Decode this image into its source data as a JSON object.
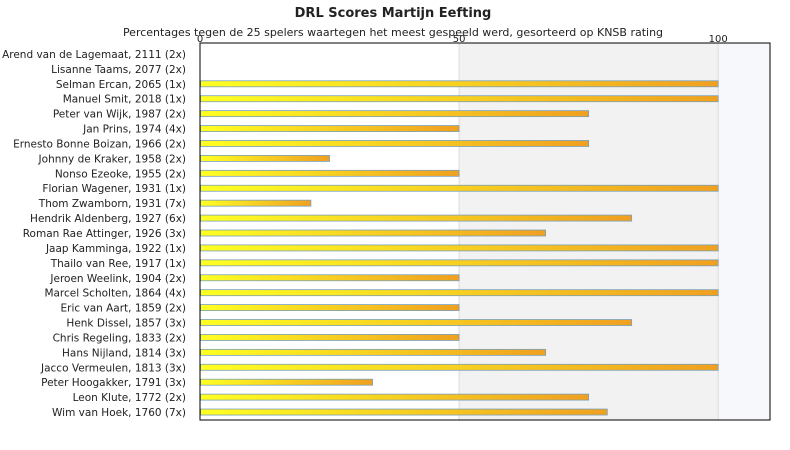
{
  "chart_data": {
    "type": "bar",
    "orientation": "horizontal",
    "title": "DRL Scores Martijn Eefting",
    "subtitle": "Percentages tegen de 25 spelers waartegen het meest gespeeld werd, gesorteerd op KNSB rating",
    "xlabel": "",
    "ylabel": "",
    "xlim": [
      0,
      110
    ],
    "xticks": [
      "0",
      "50",
      "100"
    ],
    "grid": "vertical",
    "legend": "none",
    "colors": {
      "bar_start": "#ffff22",
      "bar_end": "#f0a020",
      "bar_stroke": "#7aa0b8",
      "band_shade": "#f2f2f2",
      "band_light": "#f7f8fb",
      "grid": "#dcdcdc",
      "axis": "#000000"
    },
    "categories": [
      "Arend van de Lagemaat, 2111 (2x)",
      "Lisanne Taams, 2077 (2x)",
      "Selman Ercan, 2065 (1x)",
      "Manuel Smit, 2018 (1x)",
      "Peter van Wijk, 1987 (2x)",
      "Jan Prins, 1974 (4x)",
      "Ernesto Bonne Boizan, 1966 (2x)",
      "Johnny de Kraker, 1958 (2x)",
      "Nonso Ezeoke, 1955 (2x)",
      "Florian Wagener, 1931 (1x)",
      "Thom Zwamborn, 1931 (7x)",
      "Hendrik Aldenberg, 1927 (6x)",
      "Roman Rae Attinger, 1926 (3x)",
      "Jaap Kamminga, 1922 (1x)",
      "Thailo van Ree, 1917 (1x)",
      "Jeroen Weelink, 1904 (2x)",
      "Marcel Scholten, 1864 (4x)",
      "Eric van Aart, 1859 (2x)",
      "Henk Dissel, 1857 (3x)",
      "Chris Regeling, 1833 (2x)",
      "Hans Nijland, 1814 (3x)",
      "Jacco Vermeulen, 1813 (3x)",
      "Peter Hoogakker, 1791 (3x)",
      "Leon Klute, 1772 (2x)",
      "Wim van Hoek, 1760 (7x)"
    ],
    "values": [
      0,
      0,
      100,
      100,
      75,
      50,
      75,
      25,
      50,
      100,
      21.4,
      83.3,
      66.7,
      100,
      100,
      50,
      100,
      50,
      83.3,
      50,
      66.7,
      100,
      33.3,
      75,
      78.6
    ]
  }
}
